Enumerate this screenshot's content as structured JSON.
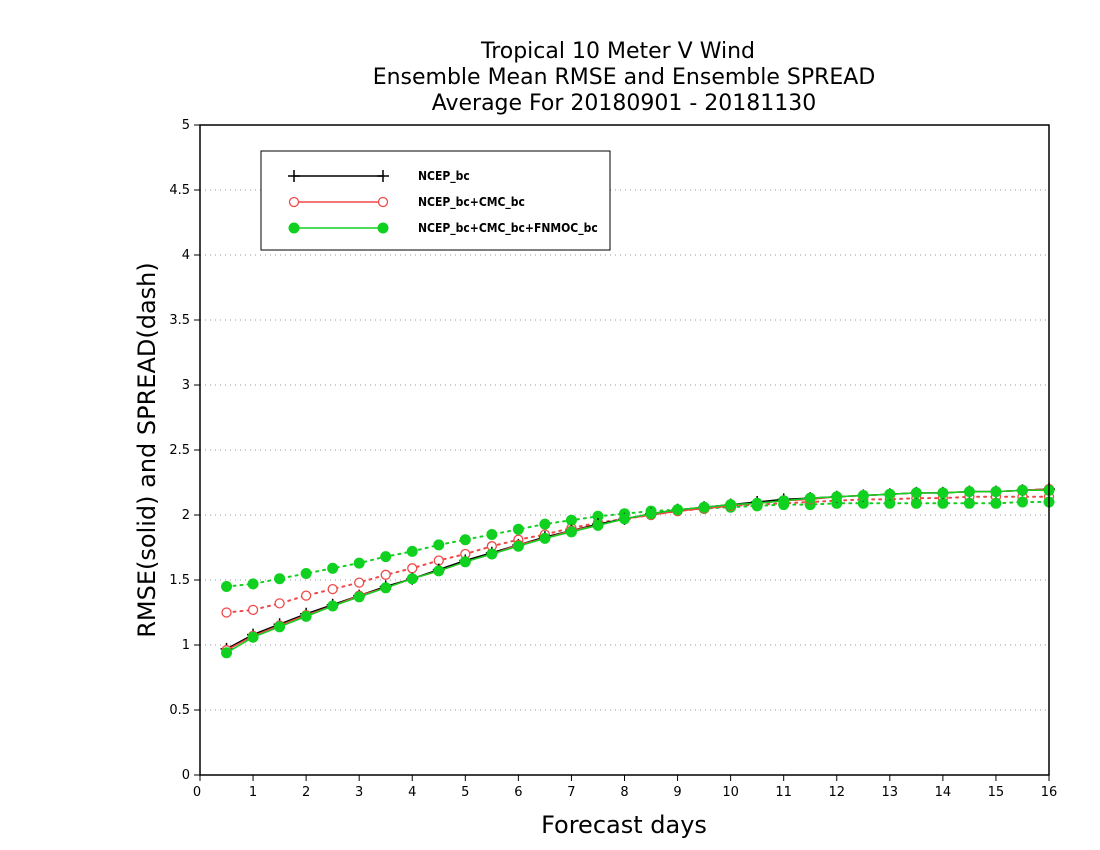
{
  "chart_data": {
    "type": "line",
    "title": [
      "Tropical 10 Meter V Wind",
      "Ensemble Mean RMSE and Ensemble SPREAD",
      "Average For 20180901 - 20181130"
    ],
    "xlabel": "Forecast days",
    "ylabel": "RMSE(solid) and SPREAD(dash)",
    "xlim": [
      0,
      16
    ],
    "ylim": [
      0,
      5
    ],
    "xticks": [
      "0",
      "1",
      "2",
      "3",
      "4",
      "5",
      "6",
      "7",
      "8",
      "9",
      "10",
      "11",
      "12",
      "13",
      "14",
      "15",
      "16"
    ],
    "yticks": [
      "0",
      "0.5",
      "1",
      "1.5",
      "2",
      "2.5",
      "3",
      "3.5",
      "4",
      "4.5",
      "5"
    ],
    "grid": "horizontal dotted",
    "legend_position": "top-left",
    "x": [
      0.5,
      1,
      1.5,
      2,
      2.5,
      3,
      3.5,
      4,
      4.5,
      5,
      5.5,
      6,
      6.5,
      7,
      7.5,
      8,
      8.5,
      9,
      9.5,
      10,
      10.5,
      11,
      11.5,
      12,
      12.5,
      13,
      13.5,
      14,
      14.5,
      15,
      15.5,
      16
    ],
    "series": [
      {
        "name": "NCEP_bc",
        "color": "#000000",
        "marker": "plus",
        "rmse": [
          0.97,
          1.08,
          1.16,
          1.24,
          1.31,
          1.38,
          1.45,
          1.51,
          1.58,
          1.65,
          1.71,
          1.77,
          1.83,
          1.88,
          1.93,
          1.97,
          2.01,
          2.04,
          2.06,
          2.08,
          2.1,
          2.12,
          2.13,
          2.14,
          2.15,
          2.16,
          2.17,
          2.17,
          2.18,
          2.18,
          2.19,
          2.2
        ],
        "spread": [
          null,
          null,
          null,
          null,
          null,
          null,
          null,
          null,
          null,
          null,
          null,
          null,
          null,
          null,
          null,
          null,
          null,
          null,
          null,
          null,
          null,
          null,
          null,
          null,
          null,
          null,
          null,
          null,
          null,
          null,
          null,
          null
        ]
      },
      {
        "name": "NCEP_bc+CMC_bc",
        "color": "#f04848",
        "marker": "open-circle",
        "rmse": [
          0.96,
          1.07,
          1.15,
          1.23,
          1.3,
          1.38,
          1.44,
          1.51,
          1.57,
          1.64,
          1.7,
          1.77,
          1.82,
          1.88,
          1.92,
          1.97,
          2.0,
          2.03,
          2.05,
          2.07,
          2.09,
          2.11,
          2.12,
          2.14,
          2.15,
          2.16,
          2.17,
          2.17,
          2.18,
          2.18,
          2.19,
          2.2
        ],
        "spread": [
          1.25,
          1.27,
          1.32,
          1.38,
          1.43,
          1.48,
          1.54,
          1.59,
          1.65,
          1.7,
          1.76,
          1.81,
          1.85,
          1.9,
          1.94,
          1.97,
          2.0,
          2.03,
          2.05,
          2.07,
          2.08,
          2.09,
          2.1,
          2.11,
          2.12,
          2.12,
          2.13,
          2.13,
          2.14,
          2.14,
          2.14,
          2.14
        ]
      },
      {
        "name": "NCEP_bc+CMC_bc+FNMOC_bc",
        "color": "#10d020",
        "marker": "filled-circle",
        "rmse": [
          0.94,
          1.06,
          1.14,
          1.22,
          1.3,
          1.37,
          1.44,
          1.51,
          1.57,
          1.64,
          1.7,
          1.76,
          1.82,
          1.87,
          1.92,
          1.97,
          2.01,
          2.04,
          2.06,
          2.08,
          2.09,
          2.11,
          2.13,
          2.14,
          2.15,
          2.16,
          2.17,
          2.17,
          2.18,
          2.18,
          2.19,
          2.19
        ],
        "spread": [
          1.45,
          1.47,
          1.51,
          1.55,
          1.59,
          1.63,
          1.68,
          1.72,
          1.77,
          1.81,
          1.85,
          1.89,
          1.93,
          1.96,
          1.99,
          2.01,
          2.03,
          2.04,
          2.05,
          2.06,
          2.07,
          2.08,
          2.08,
          2.09,
          2.09,
          2.09,
          2.09,
          2.09,
          2.09,
          2.09,
          2.1,
          2.1
        ]
      }
    ]
  }
}
